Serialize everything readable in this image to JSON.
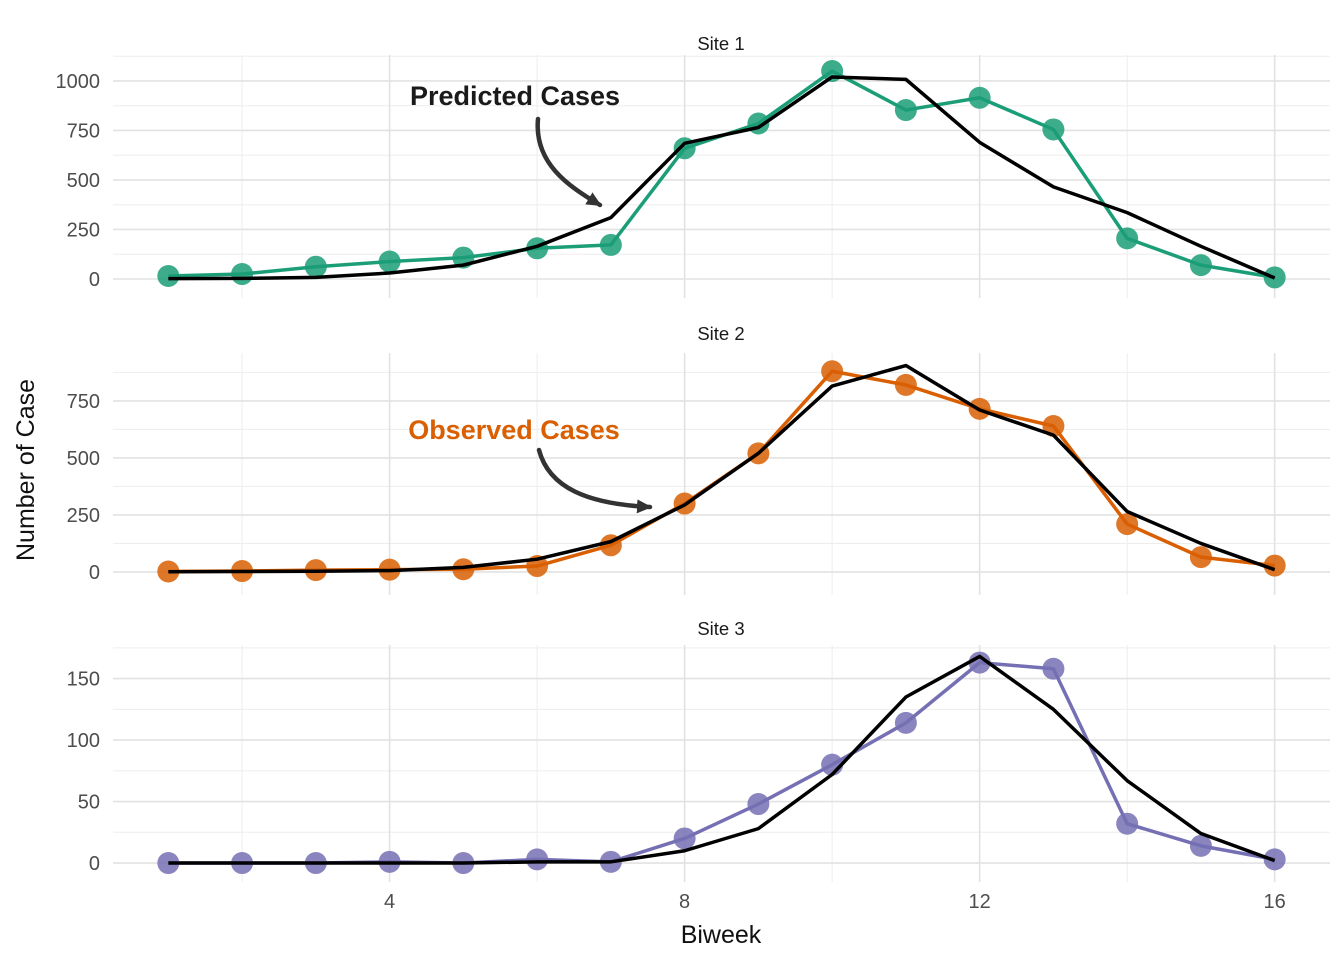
{
  "chart_data": {
    "type": "line",
    "title": "",
    "xlabel": "Biweek",
    "ylabel": "Number of Case",
    "x": [
      1,
      2,
      3,
      4,
      5,
      6,
      7,
      8,
      9,
      10,
      11,
      12,
      13,
      14,
      15,
      16
    ],
    "x_ticks": [
      4,
      8,
      12,
      16
    ],
    "x_minor_gridlines": [
      2,
      6,
      10,
      14
    ],
    "xlim": [
      0.25,
      16.75
    ],
    "grid": "on",
    "legend_position": "none",
    "annotations": [
      {
        "text": "Predicted Cases",
        "color": "#1a1a1a",
        "panel": "Site 1",
        "points_to": "black predicted line near biweek 7"
      },
      {
        "text": "Observed Cases",
        "color": "#D95F02",
        "panel": "Site 2",
        "points_to": "observed points near biweek 8"
      }
    ],
    "series_meaning": {
      "predicted": "black line",
      "observed": "colored points and line"
    },
    "panels": [
      {
        "title": "Site 1",
        "color": "#1B9E77",
        "y_ticks": [
          0,
          250,
          500,
          750,
          1000
        ],
        "y_minor_gridlines": [
          125,
          375,
          625,
          875,
          1125
        ],
        "ylim": [
          -96,
          1131
        ],
        "observed": [
          15,
          25,
          62,
          88,
          108,
          155,
          172,
          660,
          785,
          1050,
          853,
          915,
          755,
          205,
          70,
          8
        ],
        "predicted": [
          2,
          3,
          8,
          30,
          70,
          165,
          310,
          685,
          765,
          1020,
          1008,
          690,
          465,
          335,
          165,
          5
        ]
      },
      {
        "title": "Site 2",
        "color": "#D95F02",
        "y_ticks": [
          0,
          250,
          500,
          750
        ],
        "y_minor_gridlines": [
          125,
          375,
          625,
          875
        ],
        "ylim": [
          -101,
          960
        ],
        "observed": [
          2,
          4,
          8,
          10,
          12,
          26,
          117,
          300,
          520,
          880,
          820,
          715,
          640,
          210,
          65,
          28
        ],
        "predicted": [
          1,
          2,
          3,
          6,
          20,
          56,
          133,
          294,
          520,
          815,
          905,
          710,
          600,
          265,
          125,
          10
        ]
      },
      {
        "title": "Site 3",
        "color": "#7570B3",
        "y_ticks": [
          0,
          50,
          100,
          150
        ],
        "y_minor_gridlines": [
          25,
          75,
          125,
          175
        ],
        "ylim": [
          -15.4,
          177.3
        ],
        "observed": [
          0,
          0,
          0,
          1,
          0,
          3,
          1,
          20,
          48,
          80,
          114,
          163,
          158,
          32,
          14,
          3
        ],
        "predicted": [
          0,
          0,
          0,
          0,
          0,
          1,
          1,
          10,
          28,
          72,
          135,
          168,
          125,
          67,
          24,
          2
        ]
      }
    ],
    "style": {
      "grid_major_color": "#e2e2e2",
      "grid_minor_color": "#ededed",
      "predicted_line_color": "#000000",
      "tick_label_color": "#4d4d4d"
    }
  }
}
